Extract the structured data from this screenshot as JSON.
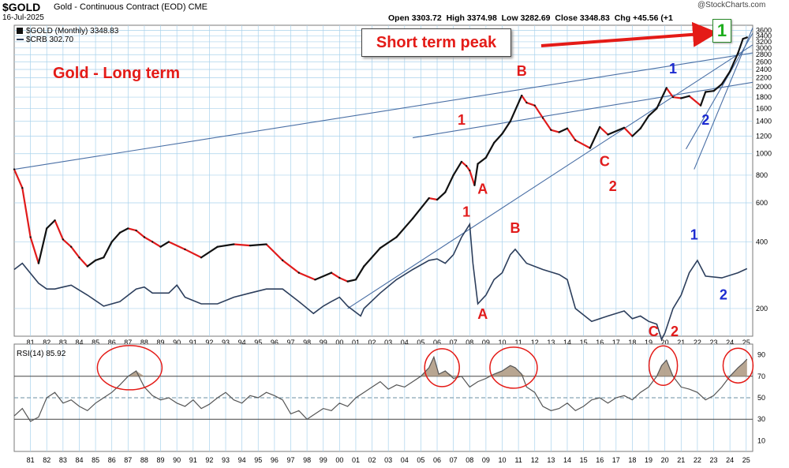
{
  "header": {
    "symbol": "$GOLD",
    "contract": "Gold - Continuous Contract (EOD)",
    "exchange": "CME",
    "date": "16-Jul-2025",
    "open_label": "Open",
    "open": "3303.72",
    "high_label": "High",
    "high": "3374.98",
    "low_label": "Low",
    "low": "3282.69",
    "close_label": "Close",
    "close": "3348.83",
    "chg_label": "Chg",
    "chg": "+45.56 (+1",
    "stockcharts": "@StockCharts.com"
  },
  "annotations": {
    "title": "Gold  -  Long term",
    "short_term_peak": "Short term peak",
    "badge": "1"
  },
  "colors": {
    "gold_up": "#111111",
    "gold_down": "#e11b1b",
    "crb": "#2c3e5c",
    "trendline": "#4a6fa5",
    "grid": "#a9d2ec",
    "wave_red": "#e11b1b",
    "wave_blue": "#1c2bd0",
    "rsi_line": "#555555",
    "rsi_fill": "#b09c86",
    "badge_green": "#1fae1f"
  },
  "chart_data": [
    {
      "type": "line",
      "title": "",
      "y_scale": "log",
      "ylim": [
        150,
        3800
      ],
      "x_ticks": [
        "81",
        "82",
        "83",
        "84",
        "85",
        "86",
        "87",
        "88",
        "89",
        "90",
        "91",
        "92",
        "93",
        "94",
        "95",
        "96",
        "97",
        "98",
        "99",
        "00",
        "01",
        "02",
        "03",
        "04",
        "05",
        "06",
        "07",
        "08",
        "09",
        "10",
        "11",
        "12",
        "13",
        "14",
        "15",
        "16",
        "17",
        "18",
        "19",
        "20",
        "21",
        "22",
        "23",
        "24",
        "25"
      ],
      "y_ticks": [
        3600,
        3400,
        3200,
        3000,
        2800,
        2600,
        2400,
        2200,
        2000,
        1800,
        1600,
        1400,
        1200,
        1000,
        800,
        600,
        400,
        200
      ],
      "grid": true,
      "legend": [
        {
          "label": "$GOLD (Monthly) 3348.83",
          "style": "candles"
        },
        {
          "label": "$CRB 302.70",
          "style": "line"
        }
      ],
      "series": [
        {
          "name": "$GOLD (Monthly)",
          "x": [
            1980.5,
            1981,
            1981.5,
            1982,
            1982.5,
            1983,
            1983.5,
            1984,
            1984.5,
            1985,
            1985.5,
            1986,
            1986.5,
            1987,
            1987.5,
            1988,
            1988.5,
            1989,
            1989.5,
            1990,
            1991,
            1992,
            1993,
            1994,
            1995,
            1996,
            1997,
            1998,
            1999,
            2000,
            2000.5,
            2001,
            2001.5,
            2002,
            2003,
            2004,
            2005,
            2006,
            2006.5,
            2007,
            2007.5,
            2008,
            2008.3,
            2008.5,
            2008.8,
            2009,
            2009.5,
            2010,
            2010.5,
            2011,
            2011.7,
            2012,
            2012.5,
            2013,
            2013.5,
            2014,
            2014.5,
            2015,
            2015.9,
            2016.5,
            2017,
            2018,
            2018.5,
            2019,
            2019.5,
            2020,
            2020.6,
            2021,
            2021.5,
            2022,
            2022.7,
            2023,
            2023.5,
            2024,
            2024.5,
            2025,
            2025.3,
            2025.55
          ],
          "values": [
            850,
            700,
            420,
            320,
            460,
            500,
            410,
            380,
            340,
            310,
            330,
            340,
            400,
            440,
            460,
            450,
            420,
            400,
            380,
            400,
            370,
            340,
            380,
            390,
            385,
            390,
            330,
            290,
            270,
            290,
            275,
            265,
            270,
            310,
            375,
            420,
            510,
            630,
            620,
            670,
            800,
            920,
            880,
            840,
            720,
            900,
            960,
            1120,
            1230,
            1400,
            1830,
            1700,
            1650,
            1450,
            1280,
            1250,
            1300,
            1150,
            1060,
            1320,
            1220,
            1310,
            1200,
            1300,
            1480,
            1600,
            1980,
            1800,
            1780,
            1820,
            1650,
            1900,
            1920,
            2060,
            2350,
            2850,
            3300,
            3348
          ]
        },
        {
          "name": "$CRB",
          "x": [
            1980.5,
            1981,
            1982,
            1982.5,
            1983,
            1983.5,
            1984,
            1985,
            1986,
            1987,
            1988,
            1988.5,
            1989,
            1990,
            1990.5,
            1991,
            1992,
            1993,
            1994,
            1995,
            1996,
            1997,
            1998,
            1998.9,
            1999.5,
            2000,
            2000.5,
            2001,
            2001.8,
            2002,
            2003,
            2004,
            2005,
            2006,
            2006.5,
            2007,
            2007.5,
            2008,
            2008.5,
            2008.7,
            2009,
            2009.5,
            2010,
            2010.5,
            2011,
            2011.3,
            2012,
            2013,
            2014,
            2014.5,
            2015,
            2016,
            2017,
            2018,
            2018.5,
            2019,
            2019.5,
            2020,
            2020.3,
            2020.5,
            2021,
            2021.5,
            2022,
            2022.5,
            2023,
            2024,
            2025,
            2025.55
          ],
          "values": [
            300,
            320,
            260,
            245,
            245,
            250,
            255,
            230,
            205,
            215,
            245,
            250,
            235,
            235,
            255,
            225,
            210,
            210,
            225,
            235,
            245,
            245,
            215,
            190,
            205,
            215,
            225,
            205,
            185,
            200,
            235,
            270,
            300,
            330,
            335,
            320,
            350,
            420,
            480,
            320,
            210,
            230,
            270,
            290,
            350,
            370,
            320,
            300,
            285,
            270,
            200,
            175,
            185,
            195,
            180,
            185,
            175,
            170,
            145,
            155,
            200,
            230,
            290,
            330,
            280,
            275,
            290,
            302.7
          ]
        }
      ],
      "annotations": [
        {
          "text": "1",
          "near_x": 2008.0,
          "near_y": 1350,
          "color": "red"
        },
        {
          "text": "A",
          "near_x": 2009.3,
          "near_y": 660,
          "color": "red"
        },
        {
          "text": "B",
          "near_x": 2011.7,
          "near_y": 2250,
          "color": "red"
        },
        {
          "text": "C",
          "near_x": 2016.8,
          "near_y": 880,
          "color": "red"
        },
        {
          "text": "2",
          "near_x": 2017.3,
          "near_y": 680,
          "color": "red"
        },
        {
          "text": "1",
          "near_x": 2021.0,
          "near_y": 2300,
          "color": "blue"
        },
        {
          "text": "2",
          "near_x": 2023.0,
          "near_y": 1350,
          "color": "blue"
        },
        {
          "text": "1",
          "near_x": 2008.3,
          "near_y": 520,
          "color": "red"
        },
        {
          "text": "A",
          "near_x": 2009.3,
          "near_y": 180,
          "color": "red"
        },
        {
          "text": "B",
          "near_x": 2011.3,
          "near_y": 440,
          "color": "red"
        },
        {
          "text": "C",
          "near_x": 2019.8,
          "near_y": 150,
          "color": "red"
        },
        {
          "text": "2",
          "near_x": 2021.1,
          "near_y": 150,
          "color": "red"
        },
        {
          "text": "1",
          "near_x": 2022.3,
          "near_y": 410,
          "color": "blue"
        },
        {
          "text": "2",
          "near_x": 2024.1,
          "near_y": 220,
          "color": "blue"
        }
      ]
    },
    {
      "type": "line",
      "title": "",
      "legend": [
        {
          "label": "RSI(14) 85.92",
          "style": "line"
        }
      ],
      "y_ticks": [
        90,
        70,
        50,
        30,
        10
      ],
      "ylim": [
        0,
        100
      ],
      "reference_lines": [
        70,
        50,
        30
      ],
      "grid": true,
      "series": [
        {
          "name": "RSI(14)",
          "x": [
            1980.5,
            1981,
            1981.5,
            1982,
            1982.5,
            1983,
            1983.5,
            1984,
            1984.5,
            1985,
            1985.5,
            1986,
            1986.5,
            1987,
            1987.5,
            1988,
            1988.5,
            1989,
            1989.5,
            1990,
            1990.5,
            1991,
            1991.5,
            1992,
            1992.5,
            1993,
            1993.5,
            1994,
            1994.5,
            1995,
            1995.5,
            1996,
            1996.5,
            1997,
            1997.5,
            1998,
            1998.5,
            1999,
            1999.5,
            2000,
            2000.5,
            2001,
            2001.5,
            2002,
            2002.5,
            2003,
            2003.5,
            2004,
            2004.5,
            2005,
            2005.5,
            2006,
            2006.3,
            2006.6,
            2007,
            2007.5,
            2008,
            2008.5,
            2009,
            2009.5,
            2010,
            2010.5,
            2011,
            2011.3,
            2011.7,
            2012,
            2012.5,
            2013,
            2013.5,
            2014,
            2014.5,
            2015,
            2015.5,
            2016,
            2016.5,
            2017,
            2017.5,
            2018,
            2018.5,
            2019,
            2019.5,
            2020,
            2020.3,
            2020.6,
            2021,
            2021.5,
            2022,
            2022.5,
            2023,
            2023.5,
            2024,
            2024.5,
            2025,
            2025.3,
            2025.55
          ],
          "values": [
            33,
            40,
            28,
            32,
            50,
            55,
            45,
            48,
            42,
            38,
            45,
            50,
            55,
            62,
            70,
            75,
            60,
            52,
            48,
            50,
            45,
            42,
            48,
            40,
            44,
            50,
            55,
            48,
            45,
            52,
            50,
            55,
            52,
            48,
            35,
            38,
            30,
            35,
            40,
            38,
            45,
            42,
            50,
            55,
            60,
            65,
            58,
            62,
            60,
            65,
            70,
            78,
            88,
            72,
            75,
            68,
            70,
            60,
            65,
            68,
            72,
            75,
            80,
            78,
            72,
            60,
            55,
            42,
            38,
            40,
            45,
            38,
            42,
            48,
            50,
            45,
            50,
            52,
            48,
            55,
            60,
            70,
            80,
            85,
            70,
            60,
            58,
            55,
            48,
            52,
            60,
            70,
            78,
            82,
            85.92
          ]
        }
      ]
    }
  ]
}
